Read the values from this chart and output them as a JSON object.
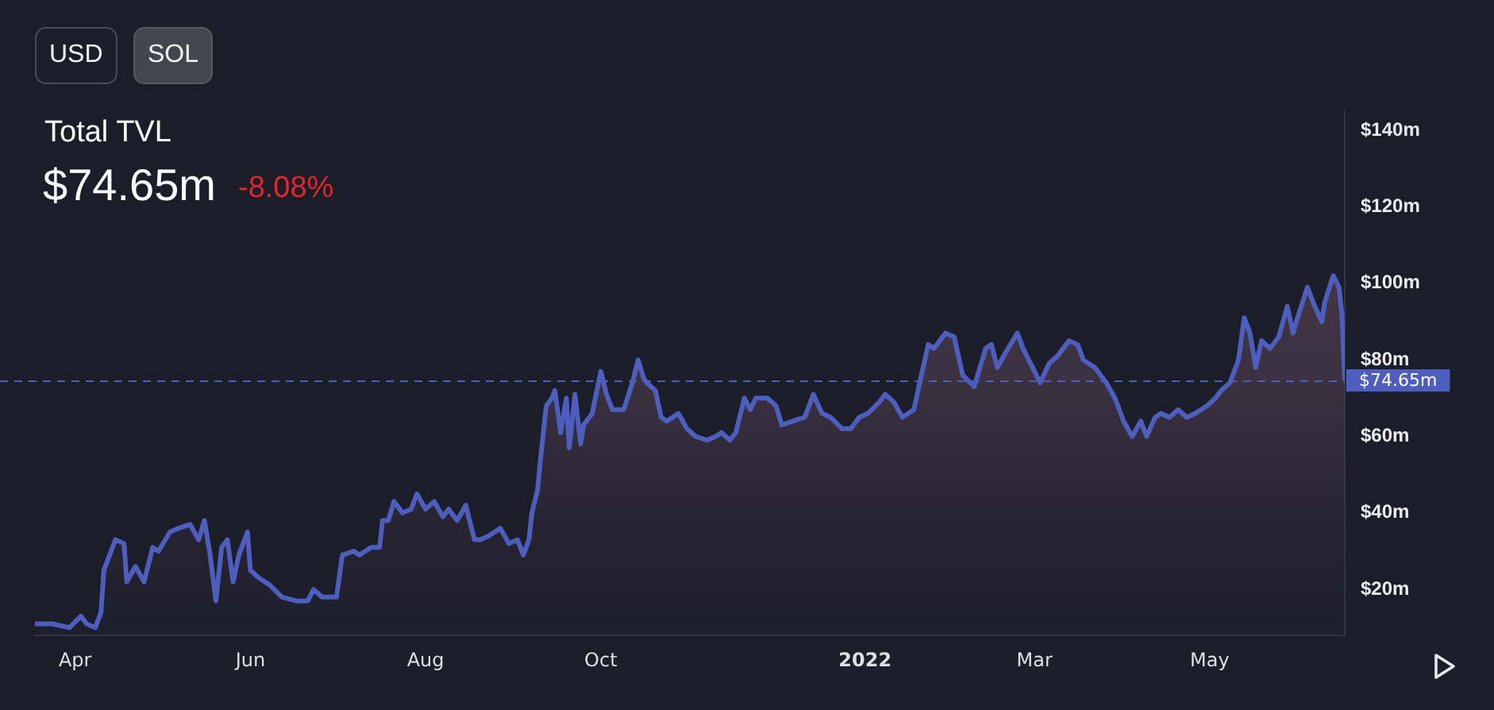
{
  "chart_data": {
    "type": "area",
    "title": "Total TVL",
    "subtitle": "$74.65m",
    "annotations": [
      "-8.08%",
      "USD",
      "SOL"
    ],
    "x": [
      "2021-03-18",
      "2021-03-24",
      "2021-03-30",
      "2021-04-03",
      "2021-04-05",
      "2021-04-08",
      "2021-04-10",
      "2021-04-11",
      "2021-04-13",
      "2021-04-15",
      "2021-04-18",
      "2021-04-19",
      "2021-04-22",
      "2021-04-25",
      "2021-04-28",
      "2021-04-30",
      "2021-05-04",
      "2021-05-07",
      "2021-05-11",
      "2021-05-14",
      "2021-05-16",
      "2021-05-18",
      "2021-05-20",
      "2021-05-22",
      "2021-05-24",
      "2021-05-26",
      "2021-05-28",
      "2021-05-31",
      "2021-06-01",
      "2021-06-04",
      "2021-06-08",
      "2021-06-12",
      "2021-06-17",
      "2021-06-21",
      "2021-06-23",
      "2021-06-26",
      "2021-07-01",
      "2021-07-03",
      "2021-07-07",
      "2021-07-09",
      "2021-07-13",
      "2021-07-16",
      "2021-07-17",
      "2021-07-19",
      "2021-07-21",
      "2021-07-24",
      "2021-07-27",
      "2021-07-29",
      "2021-08-01",
      "2021-08-04",
      "2021-08-07",
      "2021-08-09",
      "2021-08-12",
      "2021-08-15",
      "2021-08-18",
      "2021-08-20",
      "2021-08-23",
      "2021-08-27",
      "2021-08-30",
      "2021-09-02",
      "2021-09-04",
      "2021-09-06",
      "2021-09-07",
      "2021-09-09",
      "2021-09-10",
      "2021-09-12",
      "2021-09-14",
      "2021-09-15",
      "2021-09-17",
      "2021-09-19",
      "2021-09-20",
      "2021-09-22",
      "2021-09-24",
      "2021-09-25",
      "2021-09-28",
      "2021-10-01",
      "2021-10-03",
      "2021-10-05",
      "2021-10-08",
      "2021-10-09",
      "2021-10-12",
      "2021-10-14",
      "2021-10-16",
      "2021-10-17",
      "2021-10-20",
      "2021-10-22",
      "2021-10-24",
      "2021-10-28",
      "2021-10-31",
      "2021-11-03",
      "2021-11-07",
      "2021-11-10",
      "2021-11-12",
      "2021-11-15",
      "2021-11-17",
      "2021-11-20",
      "2021-11-22",
      "2021-11-24",
      "2021-11-28",
      "2021-12-01",
      "2021-12-03",
      "2021-12-07",
      "2021-12-11",
      "2021-12-14",
      "2021-12-17",
      "2021-12-20",
      "2021-12-24",
      "2021-12-27",
      "2021-12-30",
      "2022-01-02",
      "2022-01-06",
      "2022-01-08",
      "2022-01-11",
      "2022-01-14",
      "2022-01-18",
      "2022-01-20",
      "2022-01-23",
      "2022-01-25",
      "2022-01-29",
      "2022-02-01",
      "2022-02-04",
      "2022-02-08",
      "2022-02-12",
      "2022-02-14",
      "2022-02-16",
      "2022-02-19",
      "2022-02-23",
      "2022-02-25",
      "2022-02-27",
      "2022-03-03",
      "2022-03-06",
      "2022-03-09",
      "2022-03-13",
      "2022-03-16",
      "2022-03-18",
      "2022-03-22",
      "2022-03-26",
      "2022-03-29",
      "2022-04-01",
      "2022-04-04",
      "2022-04-07",
      "2022-04-09",
      "2022-04-12",
      "2022-04-14",
      "2022-04-17",
      "2022-04-20",
      "2022-04-23",
      "2022-04-26",
      "2022-04-30",
      "2022-05-03",
      "2022-05-05",
      "2022-05-08",
      "2022-05-11",
      "2022-05-13",
      "2022-05-15",
      "2022-05-17",
      "2022-05-19",
      "2022-05-22",
      "2022-05-25",
      "2022-05-28",
      "2022-05-30",
      "2022-06-01",
      "2022-06-04",
      "2022-06-06",
      "2022-06-09",
      "2022-06-10",
      "2022-06-13",
      "2022-06-15",
      "2022-06-16",
      "2022-06-17"
    ],
    "values": [
      11,
      11,
      10,
      13,
      11,
      10,
      14,
      25,
      29,
      33,
      32,
      22,
      26,
      22,
      31,
      30,
      35,
      36,
      37,
      33,
      38,
      29,
      17,
      31,
      33,
      22,
      29,
      35,
      25,
      23,
      21,
      18,
      17,
      17,
      20,
      18,
      18,
      29,
      30,
      29,
      31,
      31,
      38,
      38,
      43,
      40,
      41,
      45,
      41,
      43,
      39,
      41,
      38,
      42,
      33,
      33,
      34,
      36,
      32,
      33,
      29,
      33,
      40,
      46,
      54,
      68,
      70,
      72,
      61,
      70,
      57,
      71,
      58,
      63,
      66,
      77,
      71,
      67,
      67,
      67,
      74,
      80,
      75,
      74,
      72,
      65,
      64,
      66,
      62,
      60,
      59,
      60,
      61,
      59,
      61,
      70,
      67,
      70,
      70,
      68,
      63,
      64,
      65,
      71,
      66,
      65,
      62,
      62,
      65,
      66,
      69,
      71,
      69,
      65,
      67,
      74,
      84,
      83,
      87,
      86,
      76,
      73,
      83,
      84,
      78,
      82,
      87,
      83,
      80,
      74,
      79,
      81,
      85,
      84,
      80,
      78,
      74,
      70,
      64,
      60,
      64,
      60,
      65,
      66,
      65,
      67,
      65,
      66,
      68,
      70,
      72,
      74,
      80,
      91,
      87,
      78,
      85,
      83,
      86,
      94,
      87,
      92,
      99,
      95,
      90,
      95,
      102,
      99,
      92,
      74.65
    ],
    "color": "#4e5ebe",
    "xlim": [
      "2021-03-18",
      "2022-06-17"
    ],
    "xticks": [
      {
        "value": "2021-04-01",
        "label": "Apr"
      },
      {
        "value": "2021-06-01",
        "label": "Jun"
      },
      {
        "value": "2021-08-01",
        "label": "Aug"
      },
      {
        "value": "2021-10-01",
        "label": "Oct"
      },
      {
        "value": "2022-01-01",
        "label": "2022"
      },
      {
        "value": "2022-03-01",
        "label": "Mar"
      },
      {
        "value": "2022-05-01",
        "label": "May"
      }
    ],
    "ylim": [
      8,
      145
    ],
    "yticks": [
      {
        "value": 20,
        "label": "$20m"
      },
      {
        "value": 40,
        "label": "$40m"
      },
      {
        "value": 60,
        "label": "$60m"
      },
      {
        "value": 80,
        "label": "$80m"
      },
      {
        "value": 100,
        "label": "$100m"
      },
      {
        "value": 120,
        "label": "$120m"
      },
      {
        "value": 140,
        "label": "$140m"
      }
    ],
    "ref_lines": [
      {
        "axis": "y",
        "value": 74.65,
        "label": "$74.65m",
        "color": "#4e5ebe",
        "line_style": "dashed"
      }
    ]
  }
}
